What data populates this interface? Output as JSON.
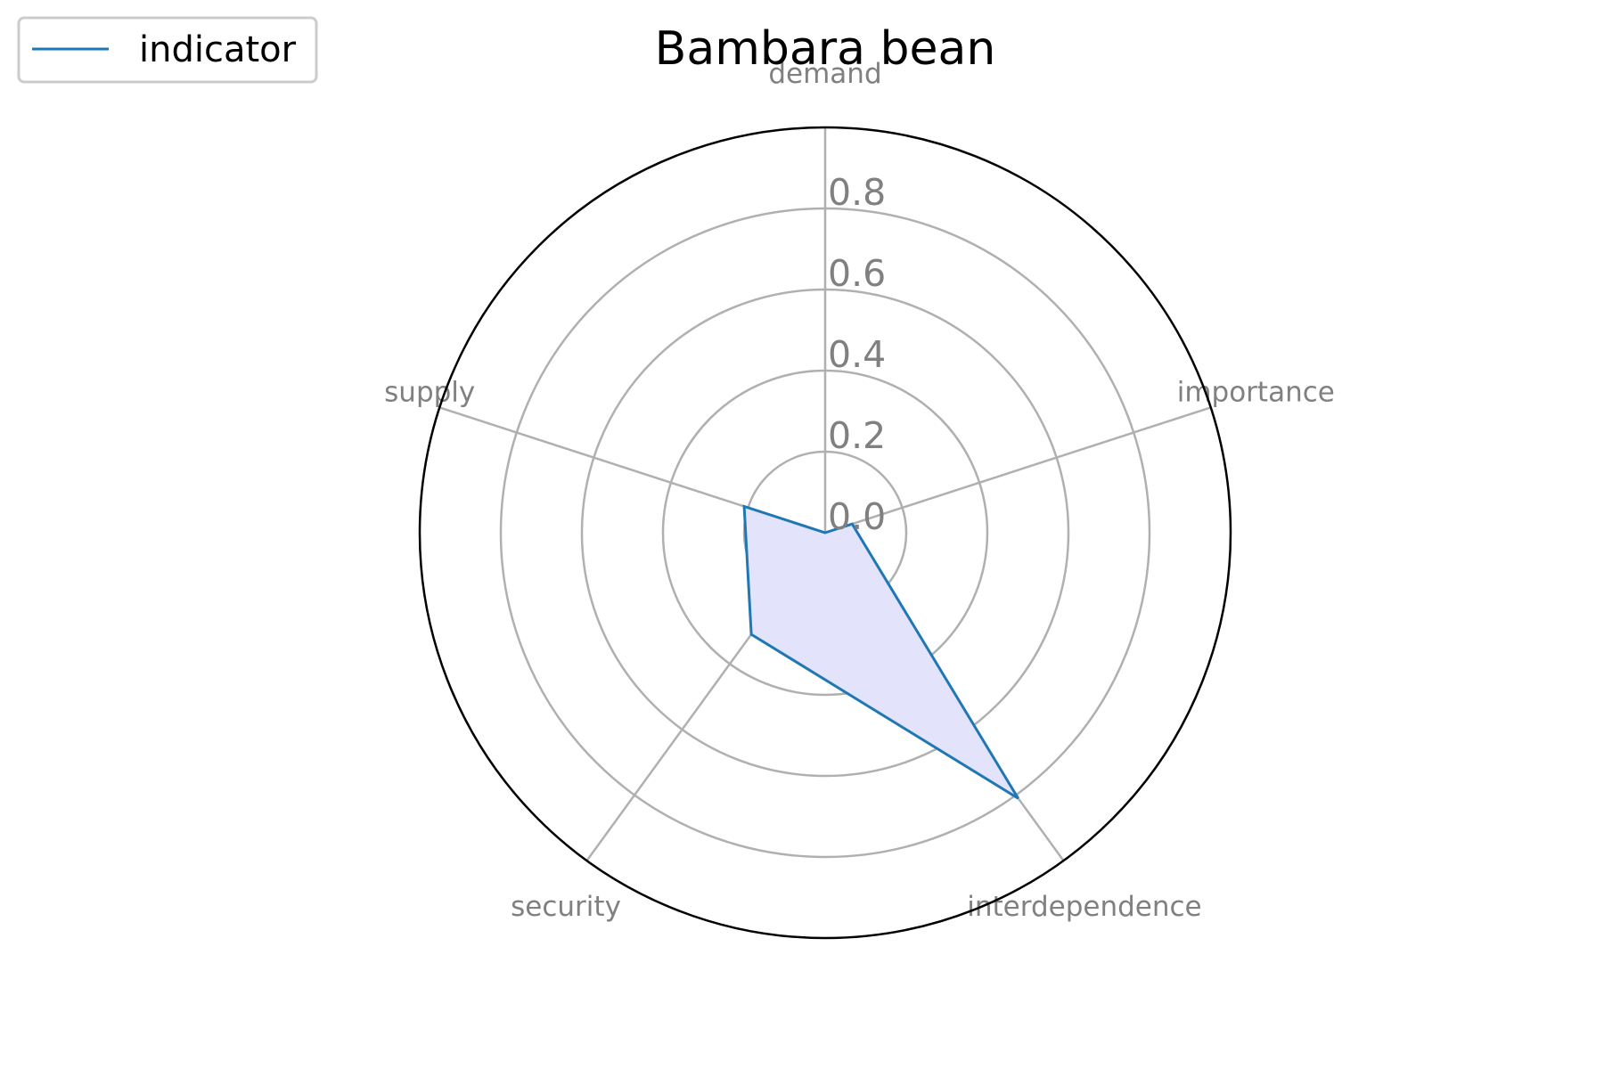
{
  "chart_data": {
    "type": "radar",
    "title": "Bambara bean",
    "categories": [
      "demand",
      "importance",
      "interdependence",
      "security",
      "supply"
    ],
    "series": [
      {
        "name": "indicator",
        "values": [
          0.0,
          0.07,
          0.81,
          0.31,
          0.21
        ]
      }
    ],
    "rlim": [
      0,
      1
    ],
    "rticks": [
      "0.0",
      "0.2",
      "0.4",
      "0.6",
      "0.8"
    ],
    "rtick_values": [
      0.0,
      0.2,
      0.4,
      0.6,
      0.8
    ],
    "grid": true,
    "legend_position": "top-left",
    "colors": {
      "line": "#1f77b4",
      "fill": "#e3e3fb",
      "grid": "#b0b0b0",
      "frame": "#000000",
      "label": "#808080"
    }
  }
}
